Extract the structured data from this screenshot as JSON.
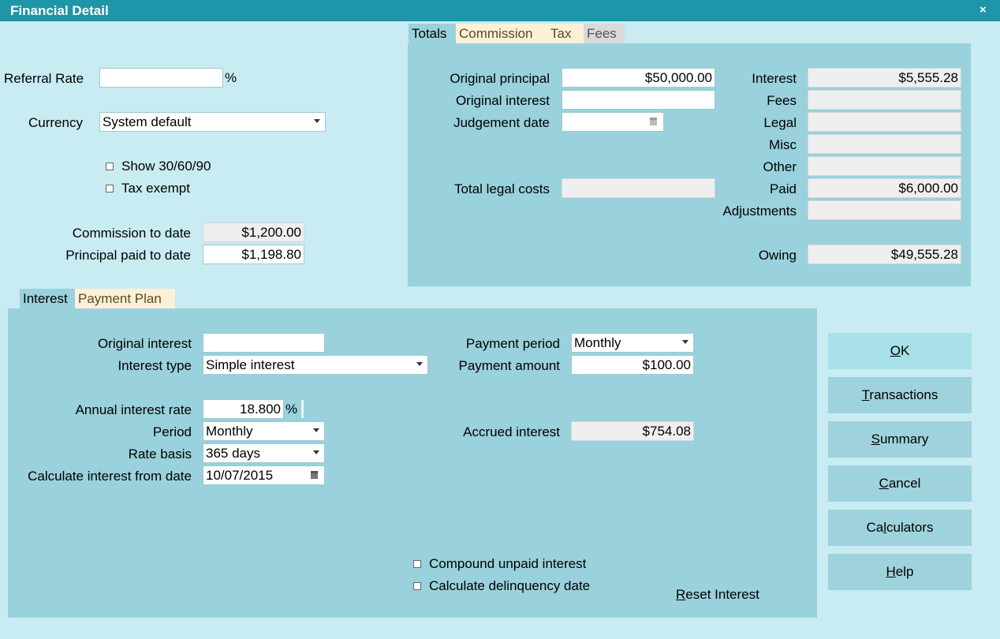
{
  "window": {
    "title": "Financial Detail",
    "close_glyph": "×"
  },
  "left": {
    "referral_rate_label": "Referral Rate",
    "referral_rate_value": "",
    "percent": "%",
    "currency_label": "Currency",
    "currency_value": "System default",
    "show_30_60_90": "Show 30/60/90",
    "tax_exempt": "Tax exempt",
    "commission_to_date_label": "Commission to date",
    "commission_to_date_value": "$1,200.00",
    "principal_paid_label": "Principal paid to date",
    "principal_paid_value": "$1,198.80"
  },
  "top_tabs": [
    "Totals",
    "Commission",
    "Tax",
    "Fees"
  ],
  "totals": {
    "original_principal_label": "Original principal",
    "original_principal_value": "$50,000.00",
    "original_interest_label": "Original interest",
    "original_interest_value": "",
    "judgement_date_label": "Judgement date",
    "judgement_date_value": "",
    "total_legal_costs_label": "Total legal costs",
    "total_legal_costs_value": "",
    "interest_label": "Interest",
    "interest_value": "$5,555.28",
    "fees_label": "Fees",
    "fees_value": "",
    "legal_label": "Legal",
    "legal_value": "",
    "misc_label": "Misc",
    "misc_value": "",
    "other_label": "Other",
    "other_value": "",
    "paid_label": "Paid",
    "paid_value": "$6,000.00",
    "adjustments_label": "Adjustments",
    "adjustments_value": "",
    "owing_label": "Owing",
    "owing_value": "$49,555.28"
  },
  "bottom_tabs": [
    "Interest",
    "Payment Plan"
  ],
  "interest": {
    "original_interest_label": "Original interest",
    "original_interest_value": "",
    "interest_type_label": "Interest type",
    "interest_type_value": "Simple interest",
    "annual_rate_label": "Annual interest rate",
    "annual_rate_value": "18.800",
    "percent": "%",
    "period_label": "Period",
    "period_value": "Monthly",
    "rate_basis_label": "Rate basis",
    "rate_basis_value": "365 days",
    "calc_from_label": "Calculate interest from date",
    "calc_from_value": "10/07/2015",
    "payment_period_label": "Payment period",
    "payment_period_value": "Monthly",
    "payment_amount_label": "Payment amount",
    "payment_amount_value": "$100.00",
    "accrued_label": "Accrued interest",
    "accrued_value": "$754.08",
    "compound_unpaid": "Compound unpaid interest",
    "calc_delinquency": "Calculate delinquency date",
    "reset_interest_key": "R",
    "reset_interest_rest": "eset Interest"
  },
  "buttons": {
    "ok_key": "O",
    "ok_rest": "K",
    "transactions_key": "T",
    "transactions_rest": "ransactions",
    "summary_key": "S",
    "summary_rest": "ummary",
    "cancel_key": "C",
    "cancel_rest": "ancel",
    "calculators_pre": "Ca",
    "calculators_key": "l",
    "calculators_rest": "culators",
    "help_key": "H",
    "help_rest": "elp"
  }
}
